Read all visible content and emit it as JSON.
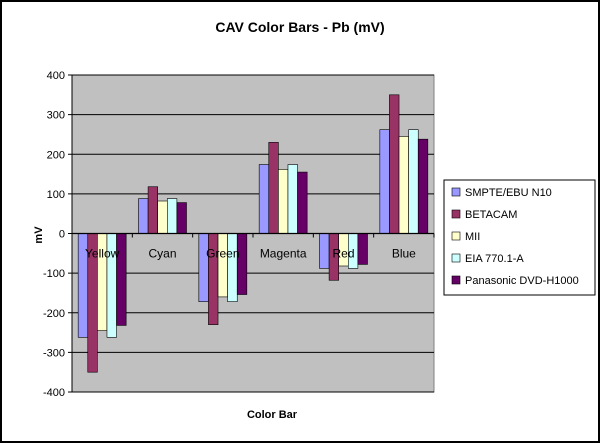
{
  "chart_data": {
    "type": "bar",
    "title": "CAV Color Bars - Pb (mV)",
    "xlabel": "Color Bar",
    "ylabel": "mV",
    "ylim": [
      -400,
      400
    ],
    "yticks": [
      400,
      300,
      200,
      100,
      0,
      -100,
      -200,
      -300,
      -400
    ],
    "grid": true,
    "legend_position": "right",
    "categories": [
      "Yellow",
      "Cyan",
      "Green",
      "Magenta",
      "Red",
      "Blue"
    ],
    "series": [
      {
        "name": "SMPTE/EBU N10",
        "color": "#9999FF",
        "values": [
          -262,
          88,
          -172,
          174,
          -88,
          262
        ]
      },
      {
        "name": "BETACAM",
        "color": "#993366",
        "values": [
          -350,
          118,
          -230,
          230,
          -118,
          350
        ]
      },
      {
        "name": "MII",
        "color": "#FFFFCC",
        "values": [
          -245,
          82,
          -160,
          162,
          -82,
          245
        ]
      },
      {
        "name": "EIA 770.1-A",
        "color": "#CCFFFF",
        "values": [
          -262,
          88,
          -172,
          174,
          -88,
          262
        ]
      },
      {
        "name": "Panasonic DVD-H1000",
        "color": "#660066",
        "values": [
          -232,
          78,
          -154,
          155,
          -78,
          238
        ]
      }
    ]
  }
}
